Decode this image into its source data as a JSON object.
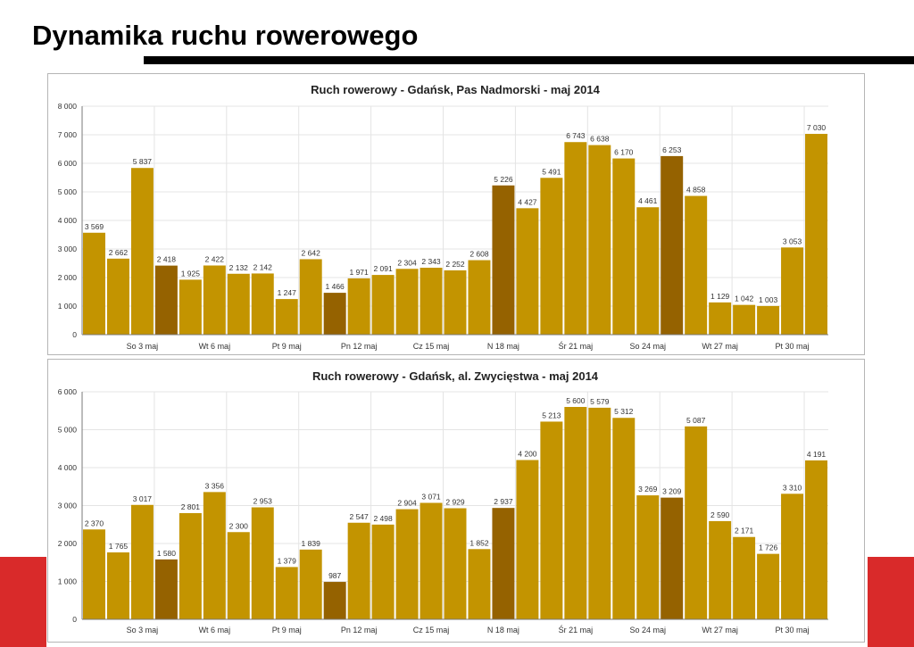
{
  "page": {
    "title": "Dynamika ruchu rowerowego"
  },
  "colors": {
    "bar": "#c39400",
    "bar_weekend": "#956200",
    "accent": "#d92a2a",
    "grid": "#e4e4e4"
  },
  "chart_data": [
    {
      "type": "bar",
      "title": "Ruch rowerowy - Gdańsk, Pas Nadmorski - maj 2014",
      "ylim": [
        0,
        8000
      ],
      "yticks": [
        "0",
        "1 000",
        "2 000",
        "3 000",
        "4 000",
        "5 000",
        "6 000",
        "7 000",
        "8 000"
      ],
      "xtick_labels": [
        {
          "index": 2,
          "label": "So 3 maj"
        },
        {
          "index": 5,
          "label": "Wt 6 maj"
        },
        {
          "index": 8,
          "label": "Pt 9 maj"
        },
        {
          "index": 11,
          "label": "Pn 12 maj"
        },
        {
          "index": 14,
          "label": "Cz 15 maj"
        },
        {
          "index": 17,
          "label": "N 18 maj"
        },
        {
          "index": 20,
          "label": "Śr 21 maj"
        },
        {
          "index": 23,
          "label": "So 24 maj"
        },
        {
          "index": 26,
          "label": "Wt 27 maj"
        },
        {
          "index": 29,
          "label": "Pt 30 maj"
        }
      ],
      "values": [
        3569,
        2662,
        5837,
        2418,
        1925,
        2422,
        2132,
        2142,
        1247,
        2642,
        1466,
        1971,
        2091,
        2304,
        2343,
        2252,
        2608,
        5226,
        4427,
        5491,
        6743,
        6638,
        6170,
        4461,
        6253,
        4858,
        1129,
        1042,
        1003,
        3053,
        7030
      ],
      "value_labels": [
        "3 569",
        "2 662",
        "5 837",
        "2 418",
        "1 925",
        "2 422",
        "2 132",
        "2 142",
        "1 247",
        "2 642",
        "1 466",
        "1 971",
        "2 091",
        "2 304",
        "2 343",
        "2 252",
        "2 608",
        "5 226",
        "4 427",
        "5 491",
        "6 743",
        "6 638",
        "6 170",
        "4 461",
        "6 253",
        "4 858",
        "1 129",
        "1 042",
        "1 003",
        "3 053",
        "7 030"
      ],
      "highlighted_indices": [
        3,
        10,
        17,
        24
      ],
      "grid": true,
      "legend": "none"
    },
    {
      "type": "bar",
      "title": "Ruch rowerowy - Gdańsk, al. Zwycięstwa - maj 2014",
      "ylim": [
        0,
        6000
      ],
      "yticks": [
        "0",
        "1 000",
        "2 000",
        "3 000",
        "4 000",
        "5 000",
        "6 000"
      ],
      "xtick_labels": [
        {
          "index": 2,
          "label": "So 3 maj"
        },
        {
          "index": 5,
          "label": "Wt 6 maj"
        },
        {
          "index": 8,
          "label": "Pt 9 maj"
        },
        {
          "index": 11,
          "label": "Pn 12 maj"
        },
        {
          "index": 14,
          "label": "Cz 15 maj"
        },
        {
          "index": 17,
          "label": "N 18 maj"
        },
        {
          "index": 20,
          "label": "Śr 21 maj"
        },
        {
          "index": 23,
          "label": "So 24 maj"
        },
        {
          "index": 26,
          "label": "Wt 27 maj"
        },
        {
          "index": 29,
          "label": "Pt 30 maj"
        }
      ],
      "values": [
        2370,
        1765,
        3017,
        1580,
        2801,
        3356,
        2300,
        2953,
        1379,
        1839,
        987,
        2547,
        2498,
        2904,
        3071,
        2929,
        1852,
        2937,
        4200,
        5213,
        5600,
        5579,
        5312,
        3269,
        3209,
        5087,
        2590,
        2171,
        1726,
        3310,
        4191
      ],
      "value_labels": [
        "2 370",
        "1 765",
        "3 017",
        "1 580",
        "2 801",
        "3 356",
        "2 300",
        "2 953",
        "1 379",
        "1 839",
        "987",
        "2 547",
        "2 498",
        "2 904",
        "3 071",
        "2 929",
        "1 852",
        "2 937",
        "4 200",
        "5 213",
        "5 600",
        "5 579",
        "5 312",
        "3 269",
        "3 209",
        "5 087",
        "2 590",
        "2 171",
        "1 726",
        "3 310",
        "4 191"
      ],
      "highlighted_indices": [
        3,
        10,
        17,
        24
      ],
      "grid": true,
      "legend": "none"
    }
  ]
}
